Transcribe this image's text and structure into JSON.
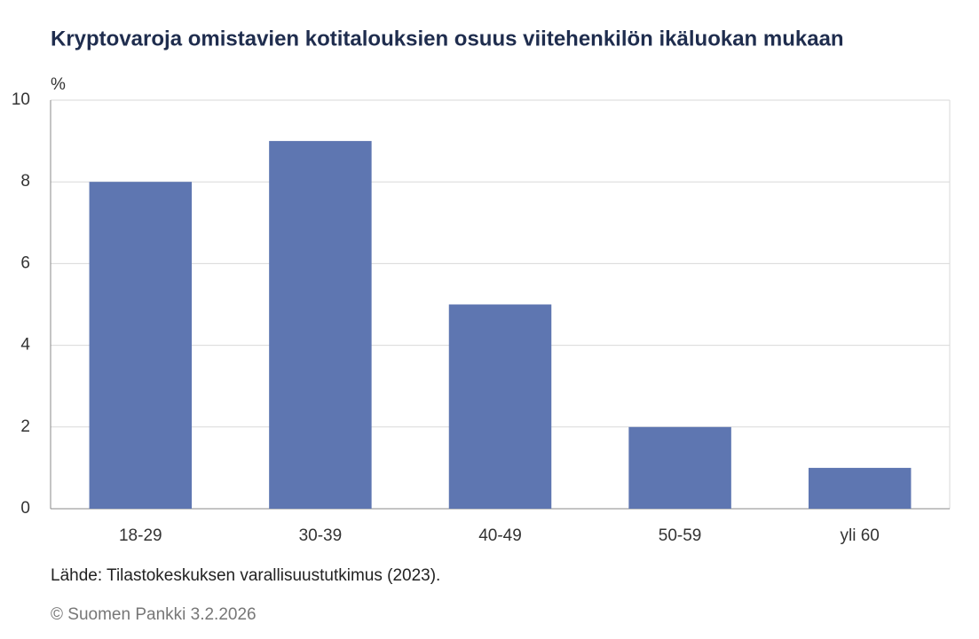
{
  "chart_data": {
    "type": "bar",
    "title": "Kryptovaroja omistavien kotitalouksien osuus viitehenkilön ikäluokan mukaan",
    "y_label": "%",
    "categories": [
      "18-29",
      "30-39",
      "40-49",
      "50-59",
      "yli 60"
    ],
    "values": [
      8,
      9,
      5,
      2,
      1
    ],
    "color": "#5e76b1",
    "ylim": [
      0,
      10
    ],
    "yticks": [
      0,
      2,
      4,
      6,
      8,
      10
    ],
    "grid": true,
    "source": "Lähde: Tilastokeskuksen varallisuustutkimus (2023).",
    "copyright": "© Suomen Pankki 3.2.2026"
  }
}
